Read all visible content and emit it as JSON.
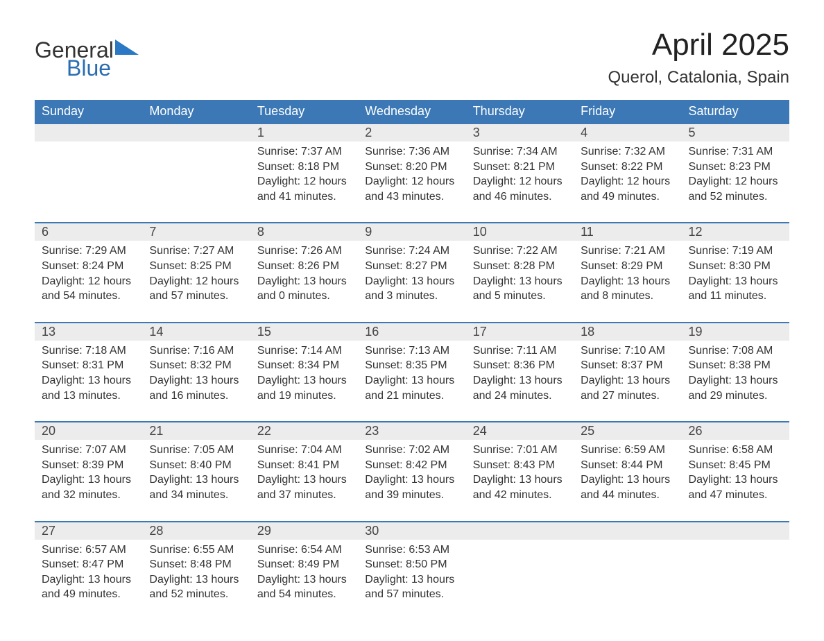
{
  "logo": {
    "text_general": "General",
    "text_blue": "Blue",
    "accent_color": "#2b78c4"
  },
  "title": "April 2025",
  "subtitle": "Querol, Catalonia, Spain",
  "colors": {
    "header_bg": "#3b78b5",
    "header_text": "#ffffff",
    "daynum_bg": "#ececec",
    "daynum_text": "#444444",
    "body_text": "#333333",
    "week_sep": "#3b78b5",
    "page_bg": "#ffffff"
  },
  "typography": {
    "title_fontsize": 44,
    "subtitle_fontsize": 24,
    "header_fontsize": 18,
    "daynum_fontsize": 18,
    "detail_fontsize": 16
  },
  "day_headers": [
    "Sunday",
    "Monday",
    "Tuesday",
    "Wednesday",
    "Thursday",
    "Friday",
    "Saturday"
  ],
  "weeks": [
    [
      null,
      null,
      {
        "n": "1",
        "sunrise": "7:37 AM",
        "sunset": "8:18 PM",
        "day_h": "12",
        "day_m": "41"
      },
      {
        "n": "2",
        "sunrise": "7:36 AM",
        "sunset": "8:20 PM",
        "day_h": "12",
        "day_m": "43"
      },
      {
        "n": "3",
        "sunrise": "7:34 AM",
        "sunset": "8:21 PM",
        "day_h": "12",
        "day_m": "46"
      },
      {
        "n": "4",
        "sunrise": "7:32 AM",
        "sunset": "8:22 PM",
        "day_h": "12",
        "day_m": "49"
      },
      {
        "n": "5",
        "sunrise": "7:31 AM",
        "sunset": "8:23 PM",
        "day_h": "12",
        "day_m": "52"
      }
    ],
    [
      {
        "n": "6",
        "sunrise": "7:29 AM",
        "sunset": "8:24 PM",
        "day_h": "12",
        "day_m": "54"
      },
      {
        "n": "7",
        "sunrise": "7:27 AM",
        "sunset": "8:25 PM",
        "day_h": "12",
        "day_m": "57"
      },
      {
        "n": "8",
        "sunrise": "7:26 AM",
        "sunset": "8:26 PM",
        "day_h": "13",
        "day_m": "0"
      },
      {
        "n": "9",
        "sunrise": "7:24 AM",
        "sunset": "8:27 PM",
        "day_h": "13",
        "day_m": "3"
      },
      {
        "n": "10",
        "sunrise": "7:22 AM",
        "sunset": "8:28 PM",
        "day_h": "13",
        "day_m": "5"
      },
      {
        "n": "11",
        "sunrise": "7:21 AM",
        "sunset": "8:29 PM",
        "day_h": "13",
        "day_m": "8"
      },
      {
        "n": "12",
        "sunrise": "7:19 AM",
        "sunset": "8:30 PM",
        "day_h": "13",
        "day_m": "11"
      }
    ],
    [
      {
        "n": "13",
        "sunrise": "7:18 AM",
        "sunset": "8:31 PM",
        "day_h": "13",
        "day_m": "13"
      },
      {
        "n": "14",
        "sunrise": "7:16 AM",
        "sunset": "8:32 PM",
        "day_h": "13",
        "day_m": "16"
      },
      {
        "n": "15",
        "sunrise": "7:14 AM",
        "sunset": "8:34 PM",
        "day_h": "13",
        "day_m": "19"
      },
      {
        "n": "16",
        "sunrise": "7:13 AM",
        "sunset": "8:35 PM",
        "day_h": "13",
        "day_m": "21"
      },
      {
        "n": "17",
        "sunrise": "7:11 AM",
        "sunset": "8:36 PM",
        "day_h": "13",
        "day_m": "24"
      },
      {
        "n": "18",
        "sunrise": "7:10 AM",
        "sunset": "8:37 PM",
        "day_h": "13",
        "day_m": "27"
      },
      {
        "n": "19",
        "sunrise": "7:08 AM",
        "sunset": "8:38 PM",
        "day_h": "13",
        "day_m": "29"
      }
    ],
    [
      {
        "n": "20",
        "sunrise": "7:07 AM",
        "sunset": "8:39 PM",
        "day_h": "13",
        "day_m": "32"
      },
      {
        "n": "21",
        "sunrise": "7:05 AM",
        "sunset": "8:40 PM",
        "day_h": "13",
        "day_m": "34"
      },
      {
        "n": "22",
        "sunrise": "7:04 AM",
        "sunset": "8:41 PM",
        "day_h": "13",
        "day_m": "37"
      },
      {
        "n": "23",
        "sunrise": "7:02 AM",
        "sunset": "8:42 PM",
        "day_h": "13",
        "day_m": "39"
      },
      {
        "n": "24",
        "sunrise": "7:01 AM",
        "sunset": "8:43 PM",
        "day_h": "13",
        "day_m": "42"
      },
      {
        "n": "25",
        "sunrise": "6:59 AM",
        "sunset": "8:44 PM",
        "day_h": "13",
        "day_m": "44"
      },
      {
        "n": "26",
        "sunrise": "6:58 AM",
        "sunset": "8:45 PM",
        "day_h": "13",
        "day_m": "47"
      }
    ],
    [
      {
        "n": "27",
        "sunrise": "6:57 AM",
        "sunset": "8:47 PM",
        "day_h": "13",
        "day_m": "49"
      },
      {
        "n": "28",
        "sunrise": "6:55 AM",
        "sunset": "8:48 PM",
        "day_h": "13",
        "day_m": "52"
      },
      {
        "n": "29",
        "sunrise": "6:54 AM",
        "sunset": "8:49 PM",
        "day_h": "13",
        "day_m": "54"
      },
      {
        "n": "30",
        "sunrise": "6:53 AM",
        "sunset": "8:50 PM",
        "day_h": "13",
        "day_m": "57"
      },
      null,
      null,
      null
    ]
  ],
  "labels": {
    "sunrise": "Sunrise: ",
    "sunset": "Sunset: ",
    "daylight1": "Daylight: ",
    "hours_word": " hours",
    "and_word": "and ",
    "minutes_word": " minutes."
  }
}
